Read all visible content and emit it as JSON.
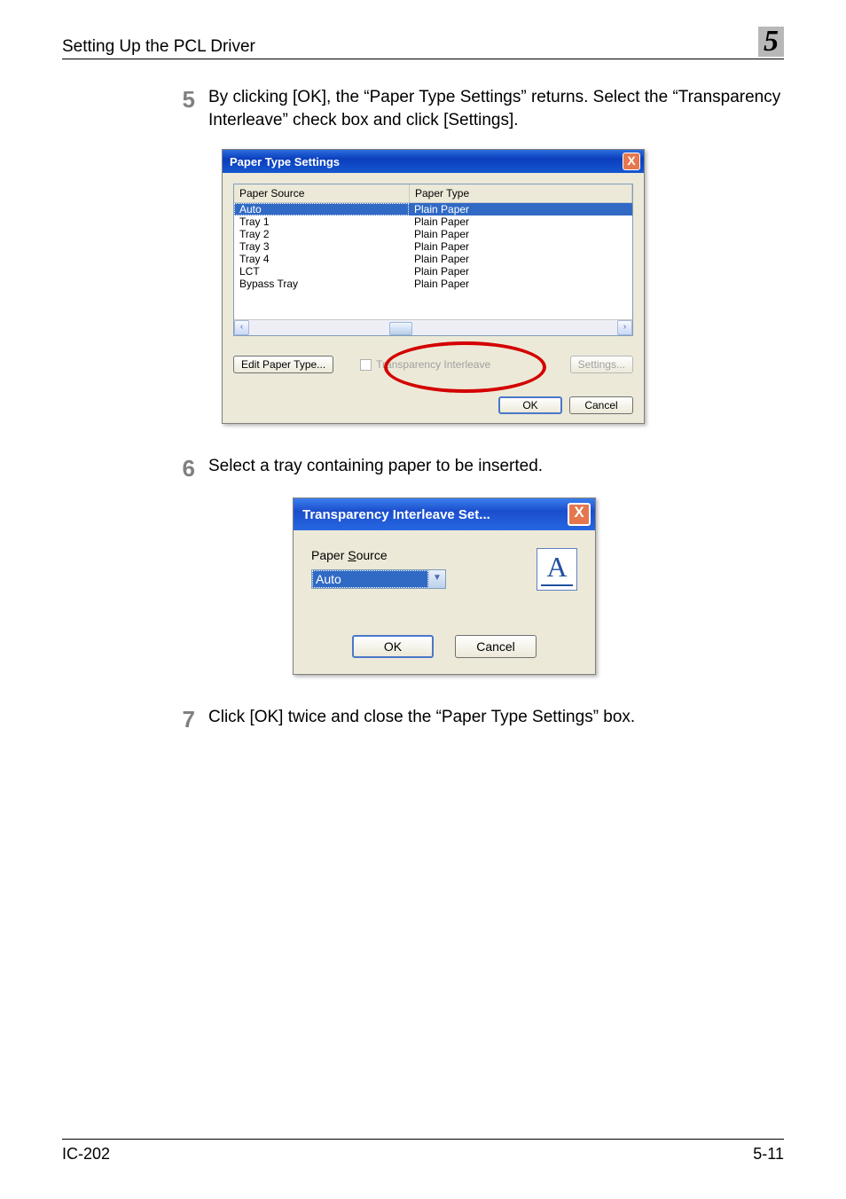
{
  "header": {
    "title": "Setting Up the PCL Driver",
    "chapter": "5"
  },
  "steps": {
    "s5": {
      "num": "5",
      "text": "By clicking [OK], the “Paper Type Settings” returns. Select the “Transparency Interleave” check box and click [Settings]."
    },
    "s6": {
      "num": "6",
      "text": "Select a tray containing paper to be inserted."
    },
    "s7": {
      "num": "7",
      "text": "Click [OK] twice and close the “Paper Type Settings” box."
    }
  },
  "dialog1": {
    "title": "Paper Type Settings",
    "close": "X",
    "columns": {
      "c1": "Paper Source",
      "c2": "Paper Type"
    },
    "rows": [
      {
        "source": "Auto",
        "type": "Plain Paper",
        "selected": true
      },
      {
        "source": "Tray 1",
        "type": "Plain Paper"
      },
      {
        "source": "Tray 2",
        "type": "Plain Paper"
      },
      {
        "source": "Tray 3",
        "type": "Plain Paper"
      },
      {
        "source": "Tray 4",
        "type": "Plain Paper"
      },
      {
        "source": "LCT",
        "type": "Plain Paper"
      },
      {
        "source": "Bypass Tray",
        "type": "Plain Paper"
      }
    ],
    "edit_btn": "Edit Paper Type...",
    "checkbox_label": "Transparency Interleave",
    "settings_btn": "Settings...",
    "ok_btn": "OK",
    "cancel_btn": "Cancel",
    "colors": {
      "titlebar_start": "#2a6ede",
      "titlebar_end": "#1657d1",
      "body_bg": "#ece9d8",
      "selection_bg": "#316ac5",
      "highlight_ring": "#d40000"
    }
  },
  "dialog2": {
    "title": "Transparency Interleave Set...",
    "close": "X",
    "label": "Paper Source",
    "selected": "Auto",
    "icon_letter": "A",
    "ok_btn": "OK",
    "cancel_btn": "Cancel"
  },
  "footer": {
    "left": "IC-202",
    "right": "5-11"
  }
}
